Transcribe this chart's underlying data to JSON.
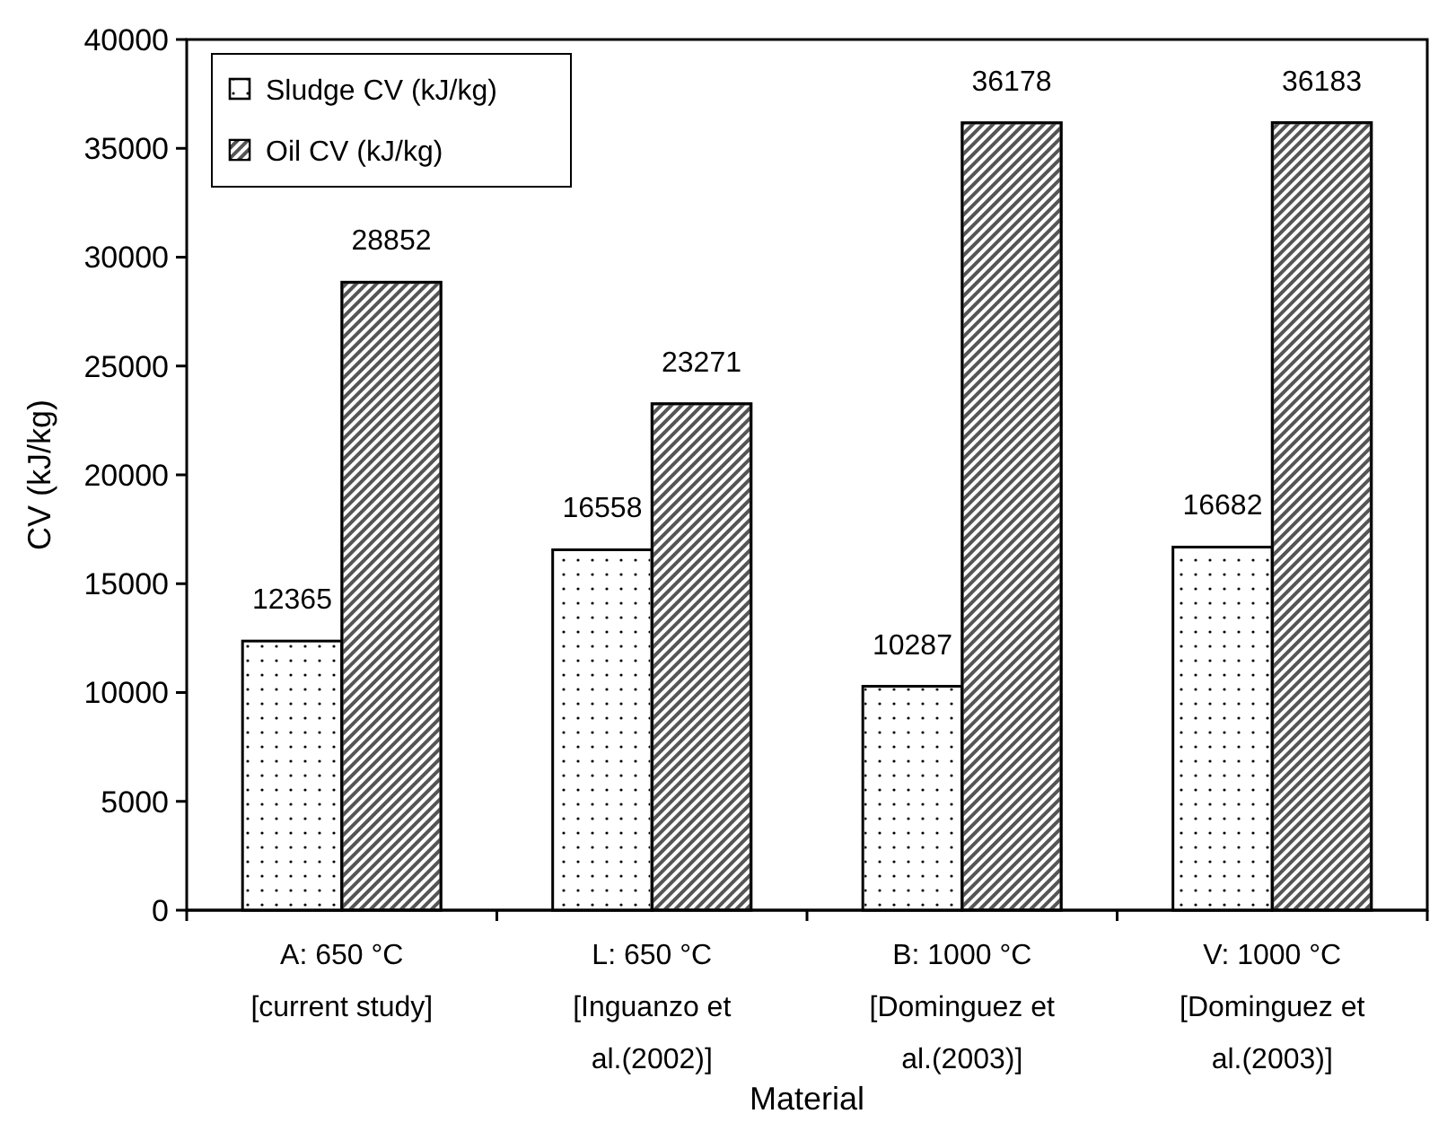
{
  "chart_data": {
    "type": "bar",
    "xlabel": "Material",
    "ylabel": "CV (kJ/kg)",
    "categories": [
      "A: 650 °C\n[current study]",
      "L: 650 °C\n[Inguanzo et\nal.(2002)]",
      "B: 1000 °C\n[Dominguez et\nal.(2003)]",
      "V: 1000 °C\n[Dominguez et\nal.(2003)]"
    ],
    "series": [
      {
        "name": "Sludge CV  (kJ/kg)",
        "color": "#ffffff",
        "values": [
          12365,
          16558,
          10287,
          16682
        ]
      },
      {
        "name": "Oil CV  (kJ/kg)",
        "color": "#555555",
        "values": [
          28852,
          23271,
          36178,
          36183
        ]
      }
    ],
    "ylim": [
      0,
      40000
    ],
    "yticks": [
      0,
      5000,
      10000,
      15000,
      20000,
      25000,
      30000,
      35000,
      40000
    ],
    "data_labels": true,
    "legend": "top left",
    "grid": false
  }
}
